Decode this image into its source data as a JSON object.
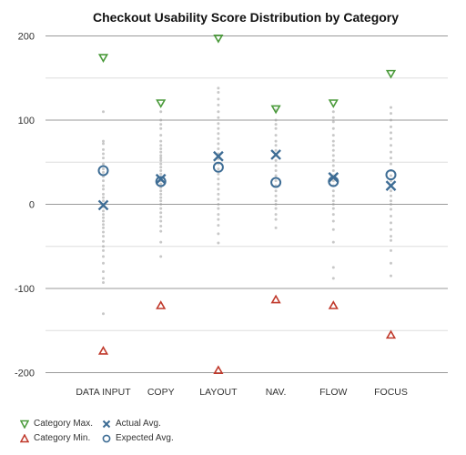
{
  "chart_data": {
    "type": "scatter",
    "title": "Checkout Usability Score Distribution by Category",
    "xlabel": "",
    "ylabel": "",
    "categories": [
      "DATA INPUT",
      "COPY",
      "LAYOUT",
      "NAV.",
      "FLOW",
      "FOCUS"
    ],
    "ylim": [
      -200,
      200
    ],
    "yticks": [
      200,
      100,
      0,
      -100,
      -200
    ],
    "grid": true,
    "legend_position": "bottom-left",
    "colors": {
      "max": "#4a9a3a",
      "min": "#c0392b",
      "actual": "#3e6d95",
      "expected": "#3e6d95",
      "raw": "#9a9a9a",
      "grid_major": "#9a9a9a",
      "grid_minor": "#dddddd"
    },
    "series": [
      {
        "name": "Category Max.",
        "marker": "triangle-down",
        "values": [
          174,
          120,
          197,
          113,
          120,
          155
        ]
      },
      {
        "name": "Category Min.",
        "marker": "triangle-up",
        "values": [
          -174,
          -120,
          -197,
          -113,
          -120,
          -155
        ]
      },
      {
        "name": "Actual Avg.",
        "marker": "x",
        "values": [
          -1,
          30,
          57,
          59,
          32,
          22
        ]
      },
      {
        "name": "Expected Avg.",
        "marker": "circle",
        "values": [
          40,
          27,
          44,
          26,
          27,
          35
        ]
      }
    ],
    "raw_points": [
      [
        110,
        75,
        72,
        65,
        60,
        55,
        48,
        42,
        38,
        33,
        28,
        22,
        18,
        12,
        8,
        4,
        0,
        -3,
        -8,
        -12,
        -16,
        -20,
        -24,
        -28,
        -33,
        -38,
        -44,
        -50,
        -55,
        -62,
        -70,
        -80,
        -88,
        -93,
        -130
      ],
      [
        110,
        100,
        95,
        90,
        82,
        75,
        70,
        66,
        62,
        58,
        55,
        52,
        48,
        44,
        40,
        36,
        32,
        28,
        24,
        20,
        16,
        12,
        8,
        4,
        0,
        -5,
        -10,
        -15,
        -20,
        -26,
        -32,
        -45,
        -62
      ],
      [
        138,
        133,
        125,
        118,
        110,
        103,
        96,
        90,
        84,
        78,
        72,
        66,
        60,
        54,
        48,
        42,
        36,
        30,
        24,
        18,
        12,
        6,
        0,
        -5,
        -12,
        -18,
        -25,
        -35,
        -46
      ],
      [
        112,
        100,
        95,
        90,
        82,
        75,
        70,
        64,
        58,
        52,
        46,
        40,
        34,
        28,
        22,
        16,
        10,
        4,
        0,
        -5,
        -12,
        -18,
        -28
      ],
      [
        110,
        103,
        98,
        90,
        82,
        75,
        70,
        64,
        58,
        52,
        46,
        40,
        34,
        28,
        22,
        16,
        10,
        4,
        0,
        -5,
        -12,
        -20,
        -30,
        -45,
        -75,
        -88
      ],
      [
        115,
        108,
        100,
        92,
        85,
        78,
        70,
        62,
        55,
        48,
        40,
        34,
        28,
        22,
        16,
        10,
        4,
        0,
        -6,
        -14,
        -22,
        -30,
        -38,
        -43,
        -55,
        -70,
        -85
      ]
    ]
  }
}
